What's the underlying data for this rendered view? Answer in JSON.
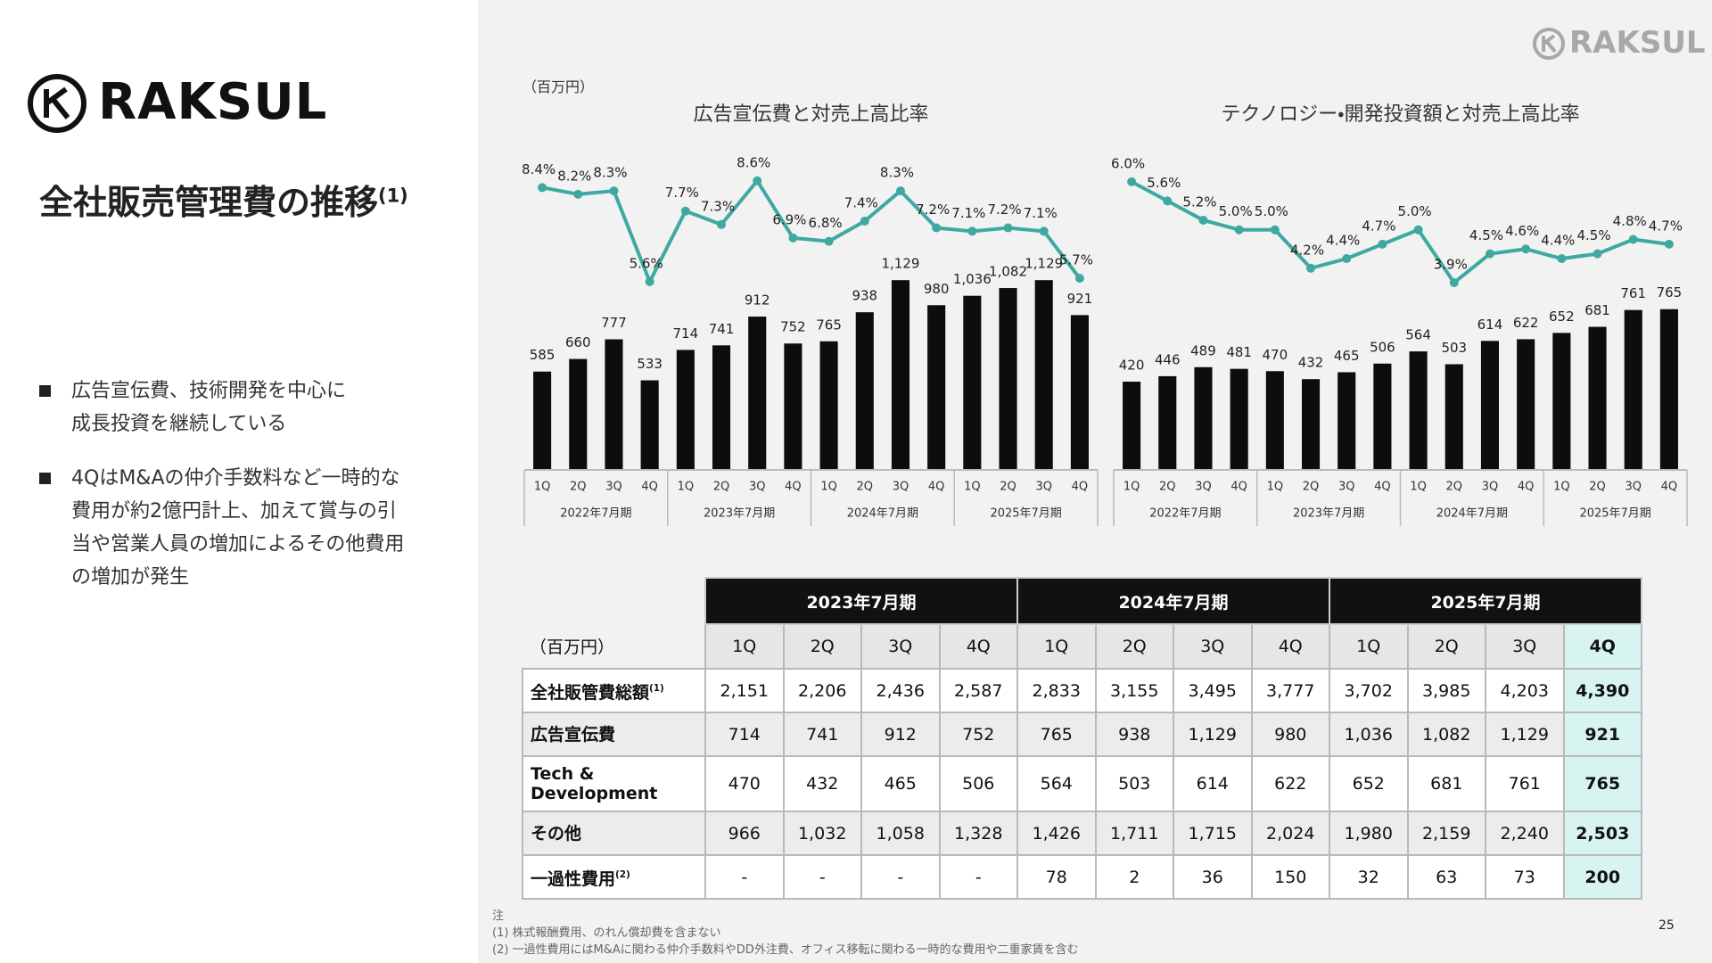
{
  "header": {
    "logo": "RAKSUL",
    "corner_logo": "RAKSUL",
    "title": "全社販売管理費の推移",
    "title_note": "(1)"
  },
  "bullets": [
    [
      "広告宣伝費、技術開発を中心に",
      "成長投資を継続している"
    ],
    [
      "4QはM&Aの仲介手数料など一時的な",
      "費用が約2億円計上、加えて賞与の引",
      "当や営業人員の増加によるその他費用",
      "の増加が発生"
    ]
  ],
  "chart_unit": "（百万円）",
  "chart_data": [
    {
      "type": "combo",
      "title": "広告宣伝費と対売上高比率",
      "categories": [
        "1Q",
        "2Q",
        "3Q",
        "4Q",
        "1Q",
        "2Q",
        "3Q",
        "4Q",
        "1Q",
        "2Q",
        "3Q",
        "4Q",
        "1Q",
        "2Q",
        "3Q",
        "4Q"
      ],
      "groups": [
        "2022年7月期",
        "2023年7月期",
        "2024年7月期",
        "2025年7月期"
      ],
      "series": [
        {
          "color": "#0d0d0d",
          "values": [
            585,
            660,
            777,
            533,
            714,
            741,
            912,
            752,
            765,
            938,
            1129,
            980,
            1036,
            1082,
            1129,
            921
          ],
          "value_labels": [
            "585",
            "660",
            "777",
            "533",
            "714",
            "741",
            "912",
            "752",
            "765",
            "938",
            "1,129",
            "980",
            "1,036",
            "1,082",
            "1,129",
            "921"
          ]
        },
        {
          "color": "#3fa9a1",
          "axis": "y2",
          "values": [
            8.4,
            8.2,
            8.3,
            5.6,
            7.7,
            7.3,
            8.6,
            6.9,
            6.8,
            7.4,
            8.3,
            7.2,
            7.1,
            7.2,
            7.1,
            5.7
          ],
          "value_labels": [
            "8.4%",
            "8.2%",
            "8.3%",
            "5.6%",
            "7.7%",
            "7.3%",
            "8.6%",
            "6.9%",
            "6.8%",
            "7.4%",
            "8.3%",
            "7.2%",
            "7.1%",
            "7.2%",
            "7.1%",
            "5.7%"
          ]
        }
      ],
      "ylim": [
        0,
        2000
      ],
      "y2lim": [
        0,
        10
      ]
    },
    {
      "type": "combo",
      "title": "テクノロジー・開発投資額と対売上高比率",
      "categories": [
        "1Q",
        "2Q",
        "3Q",
        "4Q",
        "1Q",
        "2Q",
        "3Q",
        "4Q",
        "1Q",
        "2Q",
        "3Q",
        "4Q",
        "1Q",
        "2Q",
        "3Q",
        "4Q"
      ],
      "groups": [
        "2022年7月期",
        "2023年7月期",
        "2024年7月期",
        "2025年7月期"
      ],
      "series": [
        {
          "color": "#0d0d0d",
          "values": [
            420,
            446,
            489,
            481,
            470,
            432,
            465,
            506,
            564,
            503,
            614,
            622,
            652,
            681,
            761,
            765
          ]
        },
        {
          "color": "#3fa9a1",
          "axis": "y2",
          "values": [
            6.0,
            5.6,
            5.2,
            5.0,
            5.0,
            4.2,
            4.4,
            4.7,
            5.0,
            3.9,
            4.5,
            4.6,
            4.4,
            4.5,
            4.8,
            4.7
          ],
          "value_labels": [
            "6.0%",
            "5.6%",
            "5.2%",
            "5.0%",
            "5.0%",
            "4.2%",
            "4.4%",
            "4.7%",
            "5.0%",
            "3.9%",
            "4.5%",
            "4.6%",
            "4.4%",
            "4.5%",
            "4.8%",
            "4.7%"
          ]
        }
      ],
      "ylim": [
        0,
        1600
      ],
      "y2lim": [
        0,
        7
      ]
    }
  ],
  "table": {
    "unit": "（百万円）",
    "periods": [
      "2023年7月期",
      "2024年7月期",
      "2025年7月期"
    ],
    "quarters": [
      "1Q",
      "2Q",
      "3Q",
      "4Q",
      "1Q",
      "2Q",
      "3Q",
      "4Q",
      "1Q",
      "2Q",
      "3Q",
      "4Q"
    ],
    "rows": [
      {
        "label": "全社販管費総額",
        "note": "(1)",
        "values": [
          "2,151",
          "2,206",
          "2,436",
          "2,587",
          "2,833",
          "3,155",
          "3,495",
          "3,777",
          "3,702",
          "3,985",
          "4,203",
          "4,390"
        ]
      },
      {
        "label": "広告宣伝費",
        "values": [
          "714",
          "741",
          "912",
          "752",
          "765",
          "938",
          "1,129",
          "980",
          "1,036",
          "1,082",
          "1,129",
          "921"
        ]
      },
      {
        "label": "Tech & Development",
        "values": [
          "470",
          "432",
          "465",
          "506",
          "564",
          "503",
          "614",
          "622",
          "652",
          "681",
          "761",
          "765"
        ]
      },
      {
        "label": "その他",
        "values": [
          "966",
          "1,032",
          "1,058",
          "1,328",
          "1,426",
          "1,711",
          "1,715",
          "2,024",
          "1,980",
          "2,159",
          "2,240",
          "2,503"
        ]
      },
      {
        "label": "一過性費用",
        "note": "(2)",
        "values": [
          "-",
          "-",
          "-",
          "-",
          "78",
          "2",
          "36",
          "150",
          "32",
          "63",
          "73",
          "200"
        ]
      }
    ]
  },
  "notes": [
    "注",
    "(1) 株式報酬費用、のれん償却費を含まない",
    "(2) 一過性費用にはM&Aに関わる仲介手数料やDD外注費、オフィス移転に関わる一時的な費用や二重家賃を含む"
  ],
  "page_number": "25"
}
